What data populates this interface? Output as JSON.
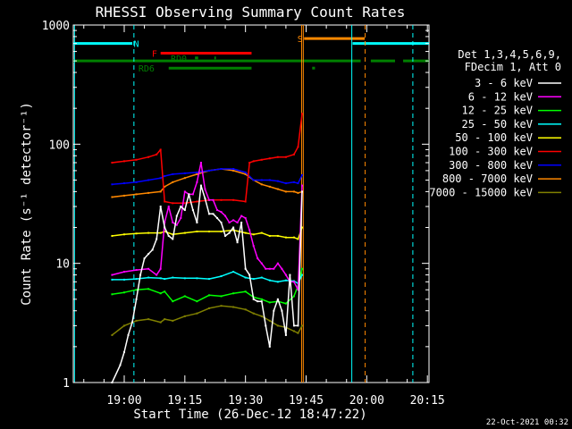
{
  "chart_data": {
    "type": "line",
    "title": "RHESSI Observing Summary Count Rates",
    "xlabel": "Start Time (26-Dec-12 18:47:22)",
    "ylabel": "Count Rate (s⁻¹ detector⁻¹)",
    "yscale": "log",
    "ylim": [
      1,
      1000
    ],
    "xlim_minutes": [
      -12.6,
      75.4
    ],
    "x_ticks": [
      {
        "label": "19:00",
        "t": 0
      },
      {
        "label": "19:15",
        "t": 15
      },
      {
        "label": "19:30",
        "t": 30
      },
      {
        "label": "19:45",
        "t": 45
      },
      {
        "label": "20:00",
        "t": 60
      },
      {
        "label": "20:15",
        "t": 75
      }
    ],
    "y_ticks": [
      {
        "label": "1",
        "v": 1
      },
      {
        "label": "10",
        "v": 10
      },
      {
        "label": "100",
        "v": 100
      },
      {
        "label": "1000",
        "v": 1000
      }
    ],
    "legend_header": [
      "Det 1,3,4,5,6,9,",
      "FDecim 1, Att 0"
    ],
    "legend_position": "right",
    "series": [
      {
        "name": "3 - 6 keV",
        "color": "#ffffff",
        "x": [
          -3,
          -1,
          0,
          1,
          2,
          3,
          4,
          5,
          6,
          7,
          8,
          9,
          10,
          11,
          12,
          13,
          14,
          15,
          16,
          17,
          18,
          19,
          20,
          21,
          22,
          23,
          24,
          25,
          26,
          27,
          28,
          29,
          30,
          31,
          32,
          33,
          34,
          35,
          36,
          37,
          38,
          39,
          40,
          41,
          42,
          43,
          44
        ],
        "y": [
          1,
          1.4,
          1.8,
          2.5,
          3.2,
          5,
          8,
          11,
          12,
          13,
          16,
          30,
          20,
          17,
          16,
          25,
          30,
          28,
          38,
          28,
          22,
          45,
          35,
          26,
          26,
          24,
          22,
          17,
          18,
          20,
          15,
          22,
          9,
          8,
          5,
          4.8,
          4.8,
          3,
          2,
          4,
          5,
          4,
          2.5,
          8,
          3,
          3,
          40
        ]
      },
      {
        "name": "6 - 12 keV",
        "color": "#ff00ff",
        "x": [
          -3,
          0,
          3,
          6,
          8,
          9,
          10,
          11,
          12,
          13,
          14,
          15,
          16,
          17,
          18,
          19,
          20,
          21,
          22,
          23,
          24,
          25,
          26,
          27,
          28,
          29,
          30,
          31,
          32,
          33,
          34,
          35,
          36,
          37,
          38,
          39,
          40,
          41,
          42,
          43,
          44
        ],
        "y": [
          8,
          8.5,
          8.8,
          9,
          8,
          9,
          22,
          30,
          22,
          21,
          24,
          40,
          38,
          38,
          48,
          70,
          42,
          34,
          34,
          28,
          27,
          25,
          22,
          23,
          22,
          25,
          24,
          19,
          14,
          11,
          10,
          9,
          9,
          9,
          10,
          9,
          8,
          7,
          7,
          6,
          45
        ]
      },
      {
        "name": "12 - 25 keV",
        "color": "#00ff00",
        "x": [
          -3,
          0,
          3,
          6,
          9,
          10,
          12,
          15,
          18,
          21,
          24,
          27,
          30,
          32,
          34,
          36,
          38,
          40,
          42,
          43,
          44
        ],
        "y": [
          5.5,
          5.7,
          6.0,
          6.1,
          5.6,
          5.8,
          4.8,
          5.3,
          4.8,
          5.4,
          5.3,
          5.6,
          5.8,
          5.2,
          5.0,
          4.7,
          4.8,
          4.6,
          5.3,
          6.5,
          9
        ]
      },
      {
        "name": "25 - 50 keV",
        "color": "#00ffff",
        "x": [
          -3,
          0,
          3,
          6,
          9,
          10,
          12,
          15,
          18,
          21,
          24,
          27,
          30,
          32,
          34,
          36,
          38,
          40,
          42,
          43,
          44
        ],
        "y": [
          7.3,
          7.3,
          7.4,
          7.6,
          7.5,
          7.4,
          7.6,
          7.5,
          7.5,
          7.4,
          7.8,
          8.5,
          7.6,
          7.4,
          7.6,
          7.2,
          7.0,
          7.2,
          7.1,
          6.8,
          8
        ]
      },
      {
        "name": "50 - 100 keV",
        "color": "#ffff00",
        "x": [
          -3,
          0,
          3,
          6,
          9,
          10,
          12,
          15,
          18,
          21,
          24,
          27,
          30,
          32,
          34,
          36,
          38,
          40,
          42,
          43,
          44
        ],
        "y": [
          17,
          17.5,
          17.8,
          18,
          18,
          18.5,
          17.5,
          18,
          18.5,
          18.5,
          18.5,
          19,
          18,
          17.5,
          18,
          17,
          17,
          16.5,
          16.5,
          16,
          20
        ]
      },
      {
        "name": "100 - 300 keV",
        "color": "#ff0000",
        "x": [
          -3,
          0,
          3,
          6,
          8,
          9,
          10,
          12,
          15,
          18,
          21,
          24,
          27,
          30,
          31,
          32,
          34,
          36,
          38,
          40,
          42,
          43,
          44
        ],
        "y": [
          70,
          72,
          74,
          78,
          82,
          90,
          33,
          32,
          32,
          33,
          34,
          34,
          34,
          33,
          70,
          72,
          74,
          76,
          78,
          78,
          82,
          95,
          180
        ]
      },
      {
        "name": "300 - 800 keV",
        "color": "#0000ff",
        "x": [
          -3,
          0,
          3,
          6,
          9,
          10,
          12,
          15,
          18,
          21,
          24,
          27,
          30,
          32,
          34,
          36,
          38,
          40,
          42,
          43,
          44
        ],
        "y": [
          46,
          47,
          48,
          50,
          52,
          54,
          56,
          57,
          58,
          60,
          62,
          62,
          58,
          50,
          50,
          50,
          49,
          47,
          48,
          47,
          55
        ]
      },
      {
        "name": "800 - 7000 keV",
        "color": "#ff8800",
        "x": [
          -3,
          0,
          3,
          6,
          9,
          10,
          12,
          15,
          18,
          21,
          24,
          27,
          30,
          32,
          34,
          36,
          38,
          40,
          42,
          43,
          44
        ],
        "y": [
          36,
          37,
          38,
          39,
          40,
          44,
          48,
          52,
          56,
          60,
          62,
          60,
          56,
          50,
          46,
          44,
          42,
          40,
          40,
          39,
          40
        ]
      },
      {
        "name": "7000 - 15000 keV",
        "color": "#808000",
        "x": [
          -3,
          0,
          3,
          6,
          9,
          10,
          12,
          15,
          18,
          21,
          24,
          27,
          30,
          32,
          34,
          36,
          38,
          40,
          42,
          43,
          44
        ],
        "y": [
          2.5,
          3.0,
          3.3,
          3.4,
          3.2,
          3.4,
          3.3,
          3.6,
          3.8,
          4.2,
          4.4,
          4.3,
          4.1,
          3.8,
          3.6,
          3.3,
          3.0,
          2.9,
          2.7,
          2.6,
          3
        ]
      }
    ],
    "status_bars": [
      {
        "label": "N",
        "color": "#00ffff",
        "v": 700,
        "segments": [
          [
            -12.6,
            2
          ],
          [
            56.5,
            75.4
          ]
        ],
        "label_t": 3
      },
      {
        "label": "S",
        "color": "#ff8800",
        "v": 770,
        "segments": [
          [
            44.5,
            59.5
          ]
        ],
        "label_t": 43.5
      },
      {
        "label": "F",
        "color": "#ff0000",
        "v": 580,
        "segments": [
          [
            9,
            31.5
          ]
        ],
        "label_t": 7.5
      },
      {
        "label": "RD0",
        "color": "#008000",
        "v": 530,
        "segments": [
          [
            17.5,
            18.3
          ],
          [
            22.3,
            22.7
          ]
        ],
        "label_t": 13.5
      },
      {
        "label": "",
        "color": "#008000",
        "v": 500,
        "segments": [
          [
            -12.6,
            58.5
          ],
          [
            61,
            67
          ],
          [
            69,
            75.4
          ]
        ]
      },
      {
        "label": "RD6",
        "color": "#008000",
        "v": 435,
        "segments": [
          [
            11,
            31.5
          ],
          [
            46.5,
            47.2
          ]
        ],
        "label_t": 5.5
      }
    ],
    "vlines": [
      {
        "t": -12.3,
        "color": "#00ffff",
        "dash": false
      },
      {
        "t": 2.4,
        "color": "#00ffff",
        "dash": true
      },
      {
        "t": 43.9,
        "color": "#ff8800",
        "dash": false
      },
      {
        "t": 44.3,
        "color": "#ff8800",
        "dash": false
      },
      {
        "t": 56.3,
        "color": "#00ffff",
        "dash": false
      },
      {
        "t": 59.6,
        "color": "#ff8800",
        "dash": true
      },
      {
        "t": 71.4,
        "color": "#00ffff",
        "dash": true
      }
    ]
  },
  "footer_timestamp": "22-Oct-2021 00:32"
}
